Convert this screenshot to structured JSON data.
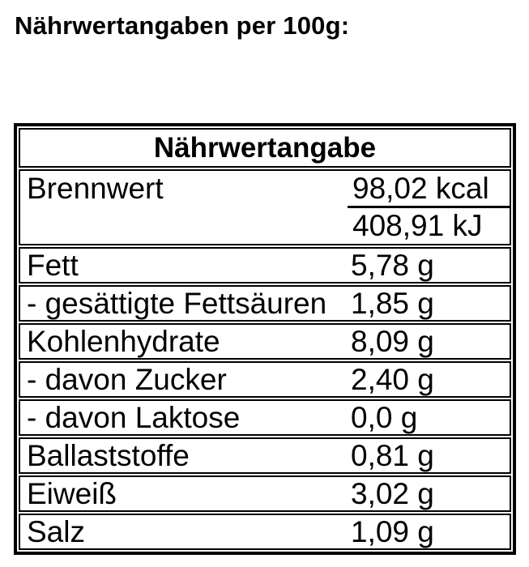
{
  "page": {
    "title": "Nährwertangaben per 100g:"
  },
  "table": {
    "header": "Nährwertangabe",
    "energy": {
      "label": "Brennwert",
      "value_kcal": "98,02 kcal",
      "value_kj": "408,91 kJ"
    },
    "rows": [
      {
        "label": "Fett",
        "value": "5,78 g"
      },
      {
        "label": "- gesättigte Fettsäuren",
        "value": "1,85 g"
      },
      {
        "label": "Kohlenhydrate",
        "value": "8,09 g"
      },
      {
        "label": "- davon Zucker",
        "value": "2,40 g"
      },
      {
        "label": "- davon Laktose",
        "value": "0,0 g"
      },
      {
        "label": "Ballaststoffe",
        "value": "0,81 g"
      },
      {
        "label": "Eiweiß",
        "value": "3,02 g"
      },
      {
        "label": "Salz",
        "value": "1,09 g"
      }
    ],
    "colors": {
      "border": "#000000",
      "text": "#000000",
      "background": "#ffffff"
    }
  }
}
